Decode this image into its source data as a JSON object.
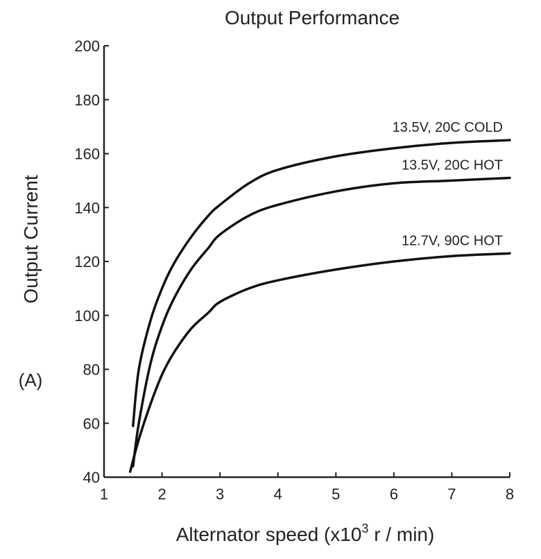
{
  "chart_data": {
    "type": "line",
    "title": "Output Performance",
    "xlabel_prefix": "Alternator speed (x10",
    "xlabel_sup": "3",
    "xlabel_suffix": " r / min)",
    "ylabel": "Output Current",
    "yunit": "(A)",
    "xlim": [
      1,
      8
    ],
    "ylim": [
      40,
      200
    ],
    "xticks": [
      1,
      2,
      3,
      4,
      5,
      6,
      7,
      8
    ],
    "yticks": [
      40,
      60,
      80,
      100,
      120,
      140,
      160,
      180,
      200
    ],
    "grid": false,
    "series": [
      {
        "name": "13.5V, 20C COLD",
        "x": [
          1.5,
          1.6,
          1.8,
          2.0,
          2.2,
          2.5,
          2.8,
          3.0,
          3.5,
          4.0,
          5.0,
          6.0,
          7.0,
          8.0
        ],
        "y": [
          59,
          80,
          98,
          110,
          119,
          129,
          137,
          141,
          149,
          154,
          159,
          162,
          164,
          165
        ]
      },
      {
        "name": "13.5V, 20C HOT",
        "x": [
          1.5,
          1.6,
          1.8,
          2.0,
          2.2,
          2.5,
          2.8,
          3.0,
          3.5,
          4.0,
          5.0,
          6.0,
          7.0,
          8.0
        ],
        "y": [
          44,
          60,
          82,
          96,
          106,
          117,
          125,
          130,
          137,
          141,
          146,
          149,
          150,
          151
        ]
      },
      {
        "name": "12.7V, 90C HOT",
        "x": [
          1.45,
          1.6,
          1.8,
          2.0,
          2.2,
          2.5,
          2.8,
          3.0,
          3.5,
          4.0,
          5.0,
          6.0,
          7.0,
          8.0
        ],
        "y": [
          42,
          54,
          67,
          78,
          86,
          95,
          101,
          105,
          110,
          113,
          117,
          120,
          122,
          123
        ]
      }
    ]
  }
}
